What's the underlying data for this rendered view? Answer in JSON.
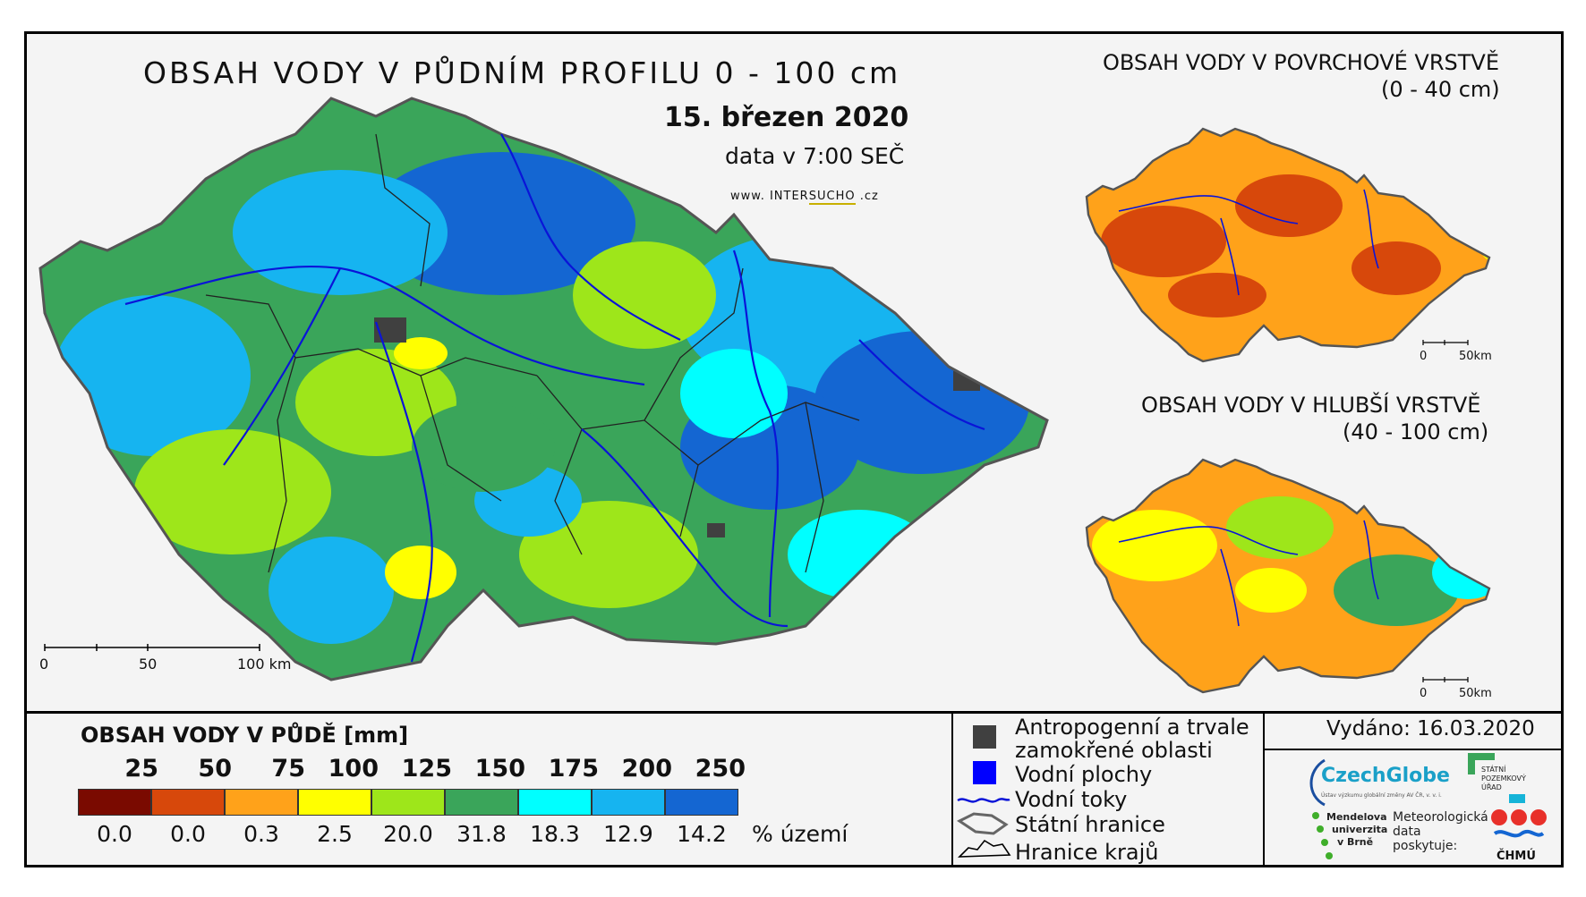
{
  "header": {
    "title": "OBSAH VODY V PŮDNÍM PROFILU 0 - 100 cm",
    "date": "15. březen 2020",
    "data_time": "data v 7:00 SEČ",
    "web_prefix": "www. ",
    "web_inter": "INTER",
    "web_sucho": "SUCHO",
    "web_suffix": " .cz"
  },
  "inset_top": {
    "title": "OBSAH VODY V POVRCHOVÉ VRSTVĚ",
    "subtitle": "(0 - 40 cm)"
  },
  "inset_bottom": {
    "title": "OBSAH VODY V HLUBŠÍ VRSTVĚ",
    "subtitle": "(40 - 100 cm)"
  },
  "scalebar_main": {
    "labels": [
      "0",
      "50",
      "100 km"
    ]
  },
  "scalebar_inset": {
    "labels": [
      "0",
      "50km"
    ]
  },
  "legend": {
    "title": "OBSAH VODY V PŮDĚ [mm]",
    "bounds": [
      "25",
      "50",
      "75",
      "100",
      "125",
      "150",
      "175",
      "200",
      "250"
    ],
    "classes": [
      {
        "color": "#7a0a00",
        "pct": "0.0"
      },
      {
        "color": "#d7480b",
        "pct": "0.0"
      },
      {
        "color": "#ffa21a",
        "pct": "0.3"
      },
      {
        "color": "#ffff00",
        "pct": "2.5"
      },
      {
        "color": "#9ee61a",
        "pct": "20.0"
      },
      {
        "color": "#3aa55a",
        "pct": "31.8"
      },
      {
        "color": "#00ffff",
        "pct": "18.3"
      },
      {
        "color": "#16b4f0",
        "pct": "12.9"
      },
      {
        "color": "#1466d2",
        "pct": "14.2"
      }
    ],
    "unit": "% území"
  },
  "key": {
    "anthropogenic_line1": "Antropogenní a trvale",
    "anthropogenic_line2": "zamokřené oblasti",
    "water_bodies": "Vodní plochy",
    "rivers": "Vodní toky",
    "state_border": "Státní hranice",
    "region_border": "Hranice krajů"
  },
  "issued": "Vydáno: 16.03.2020",
  "logos": {
    "czechglobe": "CzechGlobe",
    "czechglobe_sub": "Ústav výzkumu globální změny AV ČR, v. v. i.",
    "spu_line1": "STÁTNÍ",
    "spu_line2": "POZEMKOVÝ",
    "spu_line3": "ÚŘAD",
    "mendel_line1": "Mendelova",
    "mendel_line2": "univerzita",
    "mendel_line3": "v Brně",
    "meteo_line1": "Meteorologická",
    "meteo_line2": "data",
    "meteo_line3": "poskytuje:",
    "chmu": "ČHMÚ"
  }
}
